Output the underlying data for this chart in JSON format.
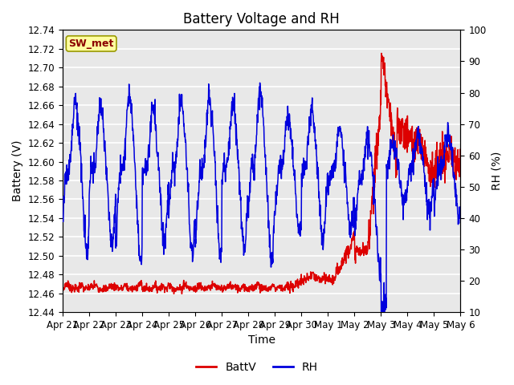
{
  "title": "Battery Voltage and RH",
  "xlabel": "Time",
  "ylabel_left": "Battery (V)",
  "ylabel_right": "RH (%)",
  "annotation": "SW_met",
  "ylim_left": [
    12.44,
    12.74
  ],
  "ylim_right": [
    10,
    100
  ],
  "yticks_left": [
    12.44,
    12.46,
    12.48,
    12.5,
    12.52,
    12.54,
    12.56,
    12.58,
    12.6,
    12.62,
    12.64,
    12.66,
    12.68,
    12.7,
    12.72,
    12.74
  ],
  "yticks_right": [
    10,
    20,
    30,
    40,
    50,
    60,
    70,
    80,
    90,
    100
  ],
  "xtick_labels": [
    "Apr 21",
    "Apr 22",
    "Apr 23",
    "Apr 24",
    "Apr 25",
    "Apr 26",
    "Apr 27",
    "Apr 28",
    "Apr 29",
    "Apr 30",
    "May 1",
    "May 2",
    "May 3",
    "May 4",
    "May 5",
    "May 6"
  ],
  "color_battv": "#dd0000",
  "color_rh": "#0000dd",
  "bg_color": "#e8e8e8",
  "grid_color": "#ffffff",
  "legend_labels": [
    "BattV",
    "RH"
  ],
  "title_fontsize": 12,
  "axis_fontsize": 10,
  "tick_fontsize": 8.5,
  "legend_fontsize": 10
}
